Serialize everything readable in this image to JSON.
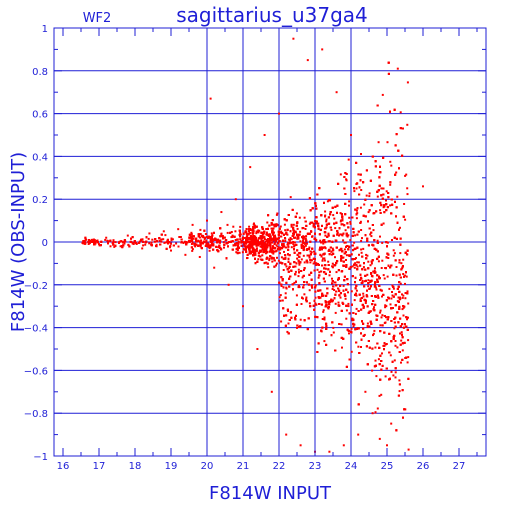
{
  "chart_data": {
    "type": "scatter",
    "title": "sagittarius_u37ga4",
    "tag": "WF2",
    "xlabel": "F814W  INPUT",
    "ylabel": "F814W (OBS-INPUT)",
    "xlim": [
      15.75,
      27.75
    ],
    "ylim": [
      -1,
      1
    ],
    "xticks": [
      16,
      17,
      18,
      19,
      20,
      21,
      22,
      23,
      24,
      25,
      26,
      27
    ],
    "yticks": [
      -1,
      -0.8,
      -0.6,
      -0.4,
      -0.2,
      0,
      0.2,
      0.4,
      0.6,
      0.8,
      1
    ],
    "ytick_labels": [
      "−1",
      "−0.8",
      "−0.6",
      "−0.4",
      "−0.2",
      "0",
      "0.2",
      "0.4",
      "0.6",
      "0.8",
      "1"
    ],
    "grid": true,
    "grid_x": [
      20,
      21,
      22,
      23,
      24
    ],
    "grid_y": [
      -0.8,
      -0.6,
      -0.4,
      -0.2,
      0,
      0.2,
      0.4,
      0.6,
      0.8
    ],
    "colors": {
      "axis": "#1f1fd6",
      "points": "#ff0000"
    },
    "series": [
      {
        "name": "",
        "points_summary": "dense cloud of stars; x from ~16.5 to ~26; scatter grows from ~±0.02 at x=16.5 to ~±1 at x>22",
        "points": [
          [
            16.6,
            0.0
          ],
          [
            16.8,
            0.01
          ],
          [
            17.0,
            -0.01
          ],
          [
            17.2,
            0.02
          ],
          [
            17.4,
            0.0
          ],
          [
            17.6,
            -0.02
          ],
          [
            17.8,
            0.03
          ],
          [
            18.0,
            0.0
          ],
          [
            18.2,
            -0.03
          ],
          [
            18.4,
            0.04
          ],
          [
            18.6,
            -0.02
          ],
          [
            18.8,
            0.05
          ],
          [
            19.0,
            -0.04
          ],
          [
            19.2,
            0.06
          ],
          [
            19.4,
            -0.06
          ],
          [
            19.6,
            0.08
          ],
          [
            19.8,
            -0.07
          ],
          [
            20.0,
            0.1
          ],
          [
            20.1,
            0.67
          ],
          [
            20.2,
            -0.12
          ],
          [
            20.4,
            0.14
          ],
          [
            20.6,
            -0.2
          ],
          [
            20.8,
            0.2
          ],
          [
            21.0,
            -0.3
          ],
          [
            21.2,
            0.35
          ],
          [
            21.4,
            -0.5
          ],
          [
            21.6,
            0.5
          ],
          [
            21.8,
            -0.7
          ],
          [
            22.0,
            0.6
          ],
          [
            22.2,
            -0.9
          ],
          [
            22.4,
            0.95
          ],
          [
            22.6,
            -0.95
          ],
          [
            22.8,
            0.85
          ],
          [
            23.0,
            -0.98
          ],
          [
            23.2,
            0.9
          ],
          [
            23.4,
            -0.98
          ],
          [
            23.6,
            0.7
          ],
          [
            23.8,
            -0.95
          ],
          [
            24.0,
            0.5
          ],
          [
            24.2,
            -0.9
          ],
          [
            24.4,
            -0.7
          ],
          [
            24.6,
            -0.8
          ],
          [
            24.8,
            -0.92
          ],
          [
            25.0,
            -0.95
          ],
          [
            25.3,
            0.81
          ],
          [
            25.6,
            -0.97
          ],
          [
            26.0,
            0.26
          ]
        ]
      }
    ]
  }
}
